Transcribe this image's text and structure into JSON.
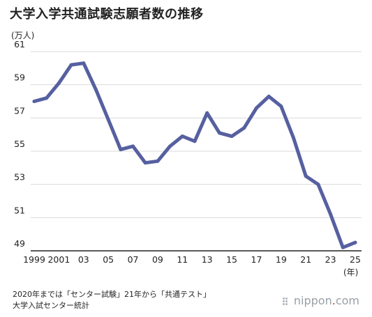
{
  "title": "大学入学共通試験志願者数の推移",
  "notes": {
    "line1": "2020年までは「センター試験」21年から「共通テスト」",
    "line2": "大学入試センター統計"
  },
  "brand": {
    "prefix": "nippon",
    "dot": ".",
    "suffix": "com"
  },
  "colors": {
    "line": "#5660a0",
    "grid": "#d9d9d9",
    "axis": "#222222"
  },
  "chart_data": {
    "type": "line",
    "title": "大学入学共通試験志願者数の推移",
    "ylabel": "(万人)",
    "xlabel": "(年)",
    "ylim": [
      49,
      61
    ],
    "yticks": [
      49,
      51,
      53,
      55,
      57,
      59,
      61
    ],
    "xtick_labels": [
      {
        "x": 1999,
        "label": "1999"
      },
      {
        "x": 2001,
        "label": "2001"
      },
      {
        "x": 2003,
        "label": "03"
      },
      {
        "x": 2005,
        "label": "05"
      },
      {
        "x": 2007,
        "label": "07"
      },
      {
        "x": 2009,
        "label": "09"
      },
      {
        "x": 2011,
        "label": "11"
      },
      {
        "x": 2013,
        "label": "13"
      },
      {
        "x": 2015,
        "label": "15"
      },
      {
        "x": 2017,
        "label": "17"
      },
      {
        "x": 2019,
        "label": "19"
      },
      {
        "x": 2021,
        "label": "21"
      },
      {
        "x": 2023,
        "label": "23"
      },
      {
        "x": 2025,
        "label": "25"
      }
    ],
    "grid": true,
    "x": [
      1999,
      2000,
      2001,
      2002,
      2003,
      2004,
      2005,
      2006,
      2007,
      2008,
      2009,
      2010,
      2011,
      2012,
      2013,
      2014,
      2015,
      2016,
      2017,
      2018,
      2019,
      2020,
      2021,
      2022,
      2023,
      2024,
      2025
    ],
    "values": [
      58.0,
      58.2,
      59.1,
      60.2,
      60.3,
      58.7,
      56.9,
      55.1,
      55.3,
      54.3,
      54.4,
      55.3,
      55.9,
      55.6,
      57.3,
      56.1,
      55.9,
      56.4,
      57.6,
      58.3,
      57.7,
      55.8,
      53.5,
      53.0,
      51.2,
      49.2,
      49.5
    ]
  }
}
